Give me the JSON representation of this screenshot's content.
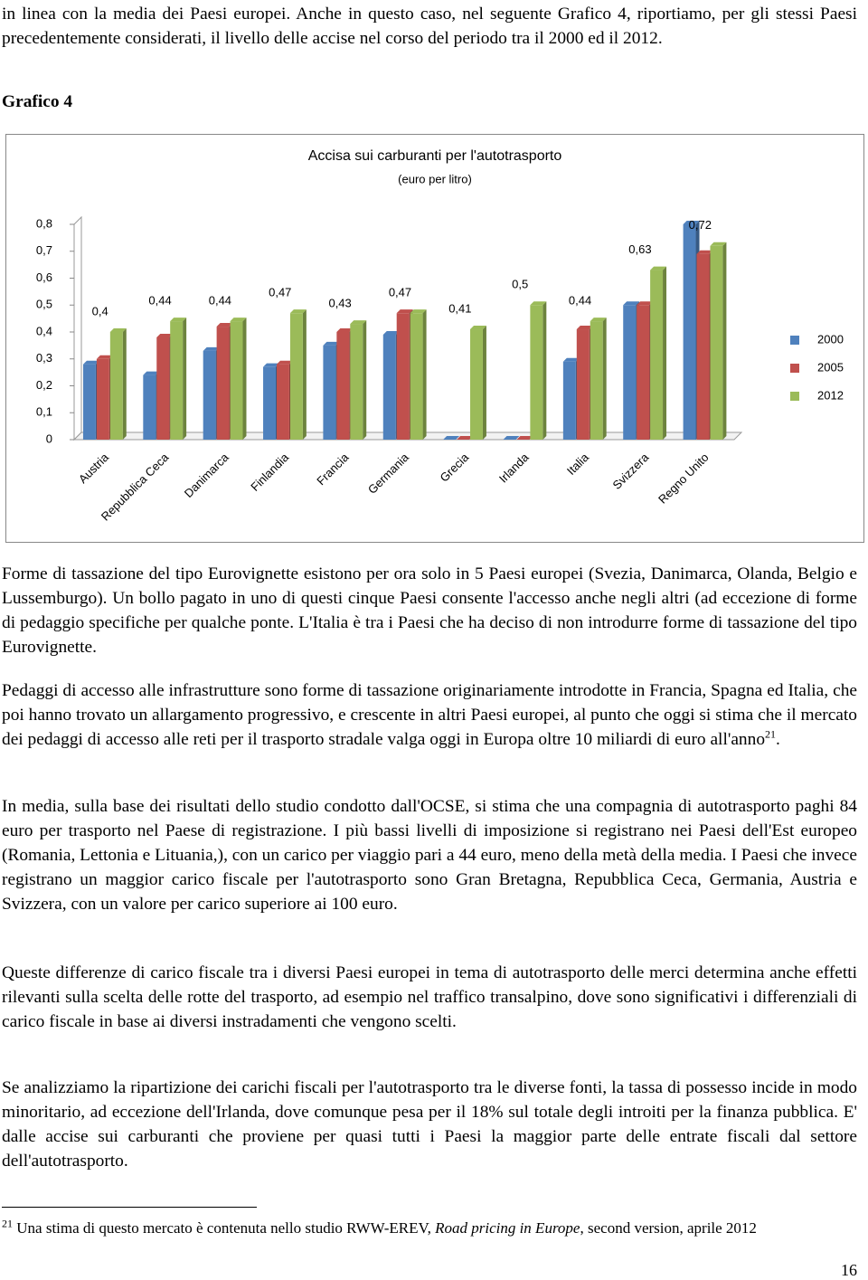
{
  "intro": "in linea con la media dei Paesi europei. Anche in questo caso, nel seguente Grafico 4, riportiamo, per gli stessi Paesi precedentemente considerati, il livello delle accise nel corso del periodo tra il 2000 ed il 2012.",
  "caption": "Grafico 4",
  "chart_data": {
    "type": "bar3d",
    "title": "Accisa sui carburanti per l'autotrasporto",
    "subtitle": "(euro per litro)",
    "categories": [
      "Austria",
      "Repubblica Ceca",
      "Danimarca",
      "Finlandia",
      "Francia",
      "Germania",
      "Grecia",
      "Irlanda",
      "Italia",
      "Svizzera",
      "Regno Unito"
    ],
    "series": [
      {
        "name": "2000",
        "color": "#4f81bd",
        "values": [
          0.28,
          0.24,
          0.33,
          0.27,
          0.35,
          0.39,
          0,
          0,
          0.29,
          0.5,
          0.8
        ]
      },
      {
        "name": "2005",
        "color": "#c0504d",
        "values": [
          0.3,
          0.38,
          0.42,
          0.28,
          0.4,
          0.47,
          0,
          0,
          0.41,
          0.5,
          0.69
        ]
      },
      {
        "name": "2012",
        "color": "#9bbb59",
        "values": [
          0.4,
          0.44,
          0.44,
          0.47,
          0.43,
          0.47,
          0.41,
          0.5,
          0.44,
          0.63,
          0.72
        ],
        "value_labels": [
          "0,4",
          "0,44",
          "0,44",
          "0,47",
          "0,43",
          "0,47",
          "0,41",
          "0,5",
          "0,44",
          "0,63",
          "0,72"
        ]
      }
    ],
    "ylim": [
      0,
      0.8
    ],
    "yticks": [
      0,
      {
        "value": 0.1,
        "label": "0,1"
      },
      {
        "value": 0.2,
        "label": "0,2"
      },
      {
        "value": 0.3,
        "label": "0,3"
      },
      {
        "value": 0.4,
        "label": "0,4"
      },
      {
        "value": 0.5,
        "label": "0,5"
      },
      {
        "value": 0.6,
        "label": "0,6"
      },
      {
        "value": 0.7,
        "label": "0,7"
      },
      {
        "value": 0.8,
        "label": "0,8"
      }
    ],
    "legend": "right"
  },
  "paragraphs": [
    "Forme di tassazione del tipo Eurovignette esistono per ora solo in 5 Paesi europei (Svezia, Danimarca, Olanda, Belgio e Lussemburgo). Un bollo pagato in uno di questi cinque Paesi consente l'accesso anche negli altri (ad eccezione di forme di pedaggio specifiche per qualche ponte. L'Italia è tra i Paesi che ha deciso di non introdurre forme di tassazione del tipo Eurovignette.",
    {
      "text": "Pedaggi di accesso alle infrastrutture sono forme di tassazione originariamente introdotte in Francia, Spagna ed Italia, che poi hanno trovato un allargamento progressivo, e crescente in altri Paesi europei, al punto che oggi si stima che il mercato dei pedaggi di accesso alle reti per il trasporto stradale valga oggi in Europa oltre 10 miliardi di euro all'anno",
      "footnote_ref": "21",
      "end": "."
    },
    "In media, sulla base dei risultati dello studio condotto dall'OCSE, si stima che una compagnia di autotrasporto paghi 84 euro per trasporto nel Paese di registrazione. I più bassi livelli di imposizione si registrano nei Paesi dell'Est europeo (Romania, Lettonia e  Lituania,), con un carico per viaggio pari a 44 euro, meno della metà della media. I Paesi che invece registrano un maggior carico fiscale per l'autotrasporto sono Gran Bretagna, Repubblica Ceca, Germania, Austria e Svizzera, con un valore per carico superiore ai 100 euro.",
    "Queste differenze di carico fiscale tra i diversi Paesi europei in tema di autotrasporto delle merci determina anche effetti rilevanti sulla scelta delle rotte del trasporto, ad esempio nel traffico transalpino, dove sono significativi i differenziali di carico fiscale in base ai diversi instradamenti che vengono scelti.",
    "Se analizziamo la ripartizione dei carichi fiscali per l'autotrasporto tra le diverse fonti, la tassa di possesso incide in modo minoritario, ad eccezione dell'Irlanda, dove comunque pesa per il 18% sul totale degli introiti per la finanza pubblica. E' dalle accise sui carburanti che proviene per quasi tutti i Paesi la maggior parte delle entrate fiscali dal settore dell'autotrasporto."
  ],
  "footnote": {
    "number": "21",
    "text": "Una stima di questo mercato è contenuta nello studio RWW-EREV, ",
    "title": "Road pricing in Europe",
    "text_end": ", second version, aprile 2012"
  },
  "page_number": "16"
}
